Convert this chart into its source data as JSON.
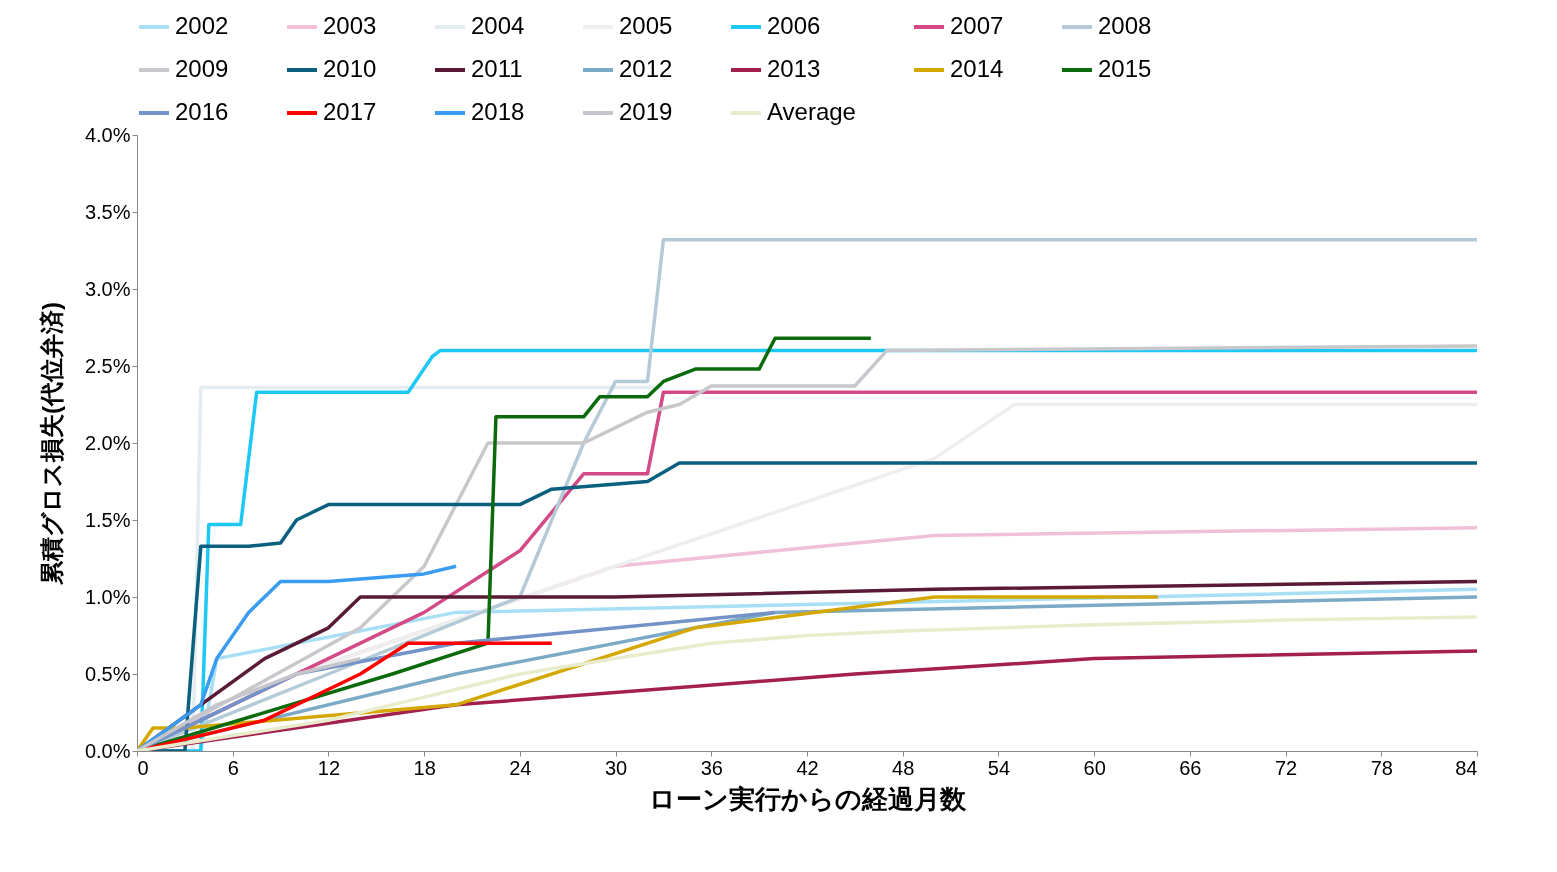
{
  "chart_data": {
    "type": "line",
    "xlabel": "ローン実行からの経過月数",
    "ylabel": "累積グロス損失(代位弁済)",
    "xlim": [
      0,
      84
    ],
    "xticks": [
      0,
      6,
      12,
      18,
      24,
      30,
      36,
      42,
      48,
      54,
      60,
      66,
      72,
      78,
      84
    ],
    "ylim": [
      0,
      4
    ],
    "yticks": [
      {
        "value": 0,
        "label": "0.0%"
      },
      {
        "value": 0.5,
        "label": "0.5%"
      },
      {
        "value": 1,
        "label": "1.0%"
      },
      {
        "value": 1.5,
        "label": "1.5%"
      },
      {
        "value": 2,
        "label": "2.0%"
      },
      {
        "value": 2.5,
        "label": "2.5%"
      },
      {
        "value": 3,
        "label": "3.0%"
      },
      {
        "value": 3.5,
        "label": "3.5%"
      },
      {
        "value": 4,
        "label": "4.0%"
      }
    ],
    "grid": false,
    "legend": "top",
    "series": [
      {
        "name": "2002",
        "color": "#a8dff5",
        "x": [
          0,
          4,
          5,
          20,
          84
        ],
        "values": [
          0,
          0,
          0.6,
          0.9,
          1.05
        ]
      },
      {
        "name": "2003",
        "color": "#f0c0d8",
        "x": [
          0,
          10,
          30,
          50,
          84
        ],
        "values": [
          0,
          0.5,
          1.2,
          1.4,
          1.45
        ]
      },
      {
        "name": "2004",
        "color": "#e3ecf0",
        "x": [
          0,
          3.5,
          4,
          33
        ],
        "values": [
          0,
          0,
          2.36,
          2.36
        ]
      },
      {
        "name": "2005",
        "color": "#eeeeee",
        "x": [
          0,
          10,
          30,
          50,
          55,
          84
        ],
        "values": [
          0,
          0.5,
          1.2,
          1.9,
          2.25,
          2.25
        ]
      },
      {
        "name": "2006",
        "color": "#1ec8f5",
        "x": [
          0,
          4,
          4.5,
          6.5,
          7.5,
          17,
          18.5,
          19,
          84
        ],
        "values": [
          0,
          0,
          1.47,
          1.47,
          2.33,
          2.33,
          2.56,
          2.6,
          2.6
        ]
      },
      {
        "name": "2007",
        "color": "#d44a86",
        "x": [
          0,
          18,
          24,
          28,
          32,
          33,
          84
        ],
        "values": [
          0,
          0.9,
          1.3,
          1.8,
          1.8,
          2.33,
          2.33
        ]
      },
      {
        "name": "2008",
        "color": "#b4cad6",
        "x": [
          0,
          12,
          24,
          28,
          30,
          32,
          33,
          84
        ],
        "values": [
          0,
          0.5,
          1.0,
          2.0,
          2.4,
          2.4,
          3.32,
          3.32
        ]
      },
      {
        "name": "2009",
        "color": "#c8c8cc",
        "x": [
          0,
          14,
          18,
          20,
          22,
          28,
          32,
          34,
          36,
          45,
          47,
          84
        ],
        "values": [
          0,
          0.8,
          1.2,
          1.6,
          2.0,
          2.0,
          2.2,
          2.25,
          2.37,
          2.37,
          2.6,
          2.63
        ]
      },
      {
        "name": "2010",
        "color": "#0b5f7f",
        "x": [
          0,
          3,
          4,
          7,
          9,
          10,
          12,
          24,
          26,
          32,
          34,
          84
        ],
        "values": [
          0,
          0,
          1.33,
          1.33,
          1.35,
          1.5,
          1.6,
          1.6,
          1.7,
          1.75,
          1.87,
          1.87
        ]
      },
      {
        "name": "2011",
        "color": "#5a1a35",
        "x": [
          0,
          8,
          12,
          14,
          30,
          50,
          84
        ],
        "values": [
          0,
          0.6,
          0.8,
          1.0,
          1.0,
          1.05,
          1.1
        ]
      },
      {
        "name": "2012",
        "color": "#7ba9c6",
        "x": [
          0,
          20,
          40,
          84
        ],
        "values": [
          0,
          0.5,
          0.9,
          1.0
        ]
      },
      {
        "name": "2013",
        "color": "#a31f4e",
        "x": [
          0,
          20,
          45,
          60,
          84
        ],
        "values": [
          0,
          0.3,
          0.5,
          0.6,
          0.65
        ]
      },
      {
        "name": "2014",
        "color": "#d4a800",
        "x": [
          0,
          1,
          3,
          20,
          35,
          50,
          64
        ],
        "values": [
          0,
          0.15,
          0.15,
          0.3,
          0.8,
          1.0,
          1.0
        ]
      },
      {
        "name": "2015",
        "color": "#0b6a0b",
        "x": [
          0,
          16,
          22,
          22.5,
          28,
          29,
          32,
          33,
          35,
          39,
          40,
          46
        ],
        "values": [
          0,
          0.5,
          0.7,
          2.17,
          2.17,
          2.3,
          2.3,
          2.4,
          2.48,
          2.48,
          2.68,
          2.68
        ]
      },
      {
        "name": "2016",
        "color": "#7392c8",
        "x": [
          0,
          10,
          20,
          40
        ],
        "values": [
          0,
          0.5,
          0.7,
          0.9
        ]
      },
      {
        "name": "2017",
        "color": "#ff0000",
        "x": [
          0,
          8,
          14,
          17,
          26
        ],
        "values": [
          0,
          0.2,
          0.5,
          0.7,
          0.7
        ]
      },
      {
        "name": "2018",
        "color": "#3a9cf0",
        "x": [
          0,
          4,
          5,
          7,
          9,
          12,
          18,
          20
        ],
        "values": [
          0,
          0.3,
          0.6,
          0.9,
          1.1,
          1.1,
          1.15,
          1.2
        ]
      },
      {
        "name": "2019",
        "color": "#c5c5cb",
        "x": [
          0,
          5,
          10,
          14
        ],
        "values": [
          0,
          0.3,
          0.5,
          0.6
        ]
      },
      {
        "name": "Average",
        "color": "#e8eccc",
        "x": [
          0,
          6,
          12,
          18,
          24,
          30,
          36,
          42,
          48,
          60,
          72,
          84
        ],
        "values": [
          0,
          0.1,
          0.2,
          0.35,
          0.5,
          0.6,
          0.7,
          0.75,
          0.78,
          0.82,
          0.85,
          0.87
        ]
      }
    ]
  }
}
